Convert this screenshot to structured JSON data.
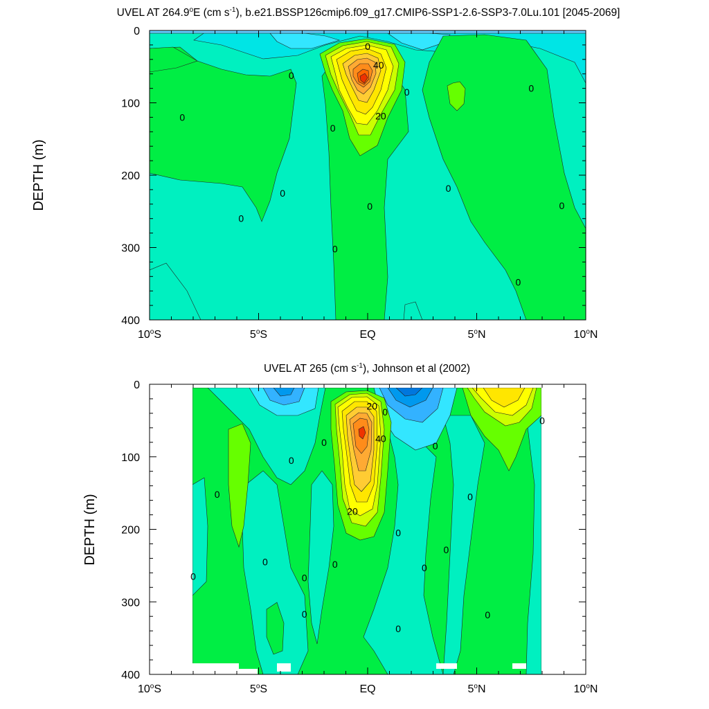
{
  "chart_data": [
    {
      "type": "heatmap",
      "title_main": "UVEL AT 264.9",
      "title_deg": "o",
      "title_e": "E (cm s",
      "title_exp": "-1",
      "title_rest": "), b.e21.BSSP126cmip6.f09_g17.CMIP6-SSP1-2.6-SSP3-7.0Lu.101 [2045-2069]",
      "ylabel": "DEPTH (m)",
      "xlim": [
        -10,
        10
      ],
      "ylim": [
        0,
        400
      ],
      "y_inverted": true,
      "x_ticks": [
        {
          "value": -10,
          "num": "10",
          "sup": "o",
          "hemi": "S"
        },
        {
          "value": -5,
          "num": "5",
          "sup": "o",
          "hemi": "S"
        },
        {
          "value": 0,
          "num": "EQ",
          "sup": "",
          "hemi": ""
        },
        {
          "value": 5,
          "num": "5",
          "sup": "o",
          "hemi": "N"
        },
        {
          "value": 10,
          "num": "10",
          "sup": "o",
          "hemi": "N"
        }
      ],
      "y_ticks": [
        0,
        100,
        200,
        300,
        400
      ],
      "contour_labels": [
        {
          "lat": 0.0,
          "depth": 22,
          "text": "0"
        },
        {
          "lat": 0.5,
          "depth": 48,
          "text": "40"
        },
        {
          "lat": -3.5,
          "depth": 62,
          "text": "0"
        },
        {
          "lat": 1.8,
          "depth": 85,
          "text": "0"
        },
        {
          "lat": 7.5,
          "depth": 80,
          "text": "0"
        },
        {
          "lat": 0.6,
          "depth": 118,
          "text": "20"
        },
        {
          "lat": -8.5,
          "depth": 120,
          "text": "0"
        },
        {
          "lat": -1.6,
          "depth": 135,
          "text": "0"
        },
        {
          "lat": -3.9,
          "depth": 225,
          "text": "0"
        },
        {
          "lat": 3.7,
          "depth": 218,
          "text": "0"
        },
        {
          "lat": 0.1,
          "depth": 243,
          "text": "0"
        },
        {
          "lat": 8.9,
          "depth": 242,
          "text": "0"
        },
        {
          "lat": -5.8,
          "depth": 260,
          "text": "0"
        },
        {
          "lat": -1.5,
          "depth": 302,
          "text": "0"
        },
        {
          "lat": 6.9,
          "depth": 348,
          "text": "0"
        }
      ]
    },
    {
      "type": "heatmap",
      "title_main": "UVEL AT 265 (cm s",
      "title_exp": "-1",
      "title_rest": "), Johnson et al (2002)",
      "ylabel": "DEPTH (m)",
      "xlim": [
        -10,
        10
      ],
      "ylim": [
        0,
        400
      ],
      "y_inverted": true,
      "x_ticks": [
        {
          "value": -10,
          "num": "10",
          "sup": "o",
          "hemi": "S"
        },
        {
          "value": -5,
          "num": "5",
          "sup": "o",
          "hemi": "S"
        },
        {
          "value": 0,
          "num": "EQ",
          "sup": "",
          "hemi": ""
        },
        {
          "value": 5,
          "num": "5",
          "sup": "o",
          "hemi": "N"
        },
        {
          "value": 10,
          "num": "10",
          "sup": "o",
          "hemi": "N"
        }
      ],
      "y_ticks": [
        0,
        100,
        200,
        300,
        400
      ],
      "contour_labels": [
        {
          "lat": 0.2,
          "depth": 30,
          "text": "20"
        },
        {
          "lat": 0.8,
          "depth": 38,
          "text": "0"
        },
        {
          "lat": 8.0,
          "depth": 50,
          "text": "0"
        },
        {
          "lat": 0.6,
          "depth": 75,
          "text": "40"
        },
        {
          "lat": -2.0,
          "depth": 80,
          "text": "0"
        },
        {
          "lat": 3.1,
          "depth": 85,
          "text": "0"
        },
        {
          "lat": -3.5,
          "depth": 105,
          "text": "0"
        },
        {
          "lat": -6.9,
          "depth": 152,
          "text": "0"
        },
        {
          "lat": 4.7,
          "depth": 155,
          "text": "0"
        },
        {
          "lat": -0.7,
          "depth": 175,
          "text": "20"
        },
        {
          "lat": 1.4,
          "depth": 205,
          "text": "0"
        },
        {
          "lat": 3.6,
          "depth": 228,
          "text": "0"
        },
        {
          "lat": -4.7,
          "depth": 245,
          "text": "0"
        },
        {
          "lat": -1.5,
          "depth": 248,
          "text": "0"
        },
        {
          "lat": 2.6,
          "depth": 253,
          "text": "0"
        },
        {
          "lat": -8.0,
          "depth": 265,
          "text": "0"
        },
        {
          "lat": -2.9,
          "depth": 267,
          "text": "0"
        },
        {
          "lat": -2.9,
          "depth": 317,
          "text": "0"
        },
        {
          "lat": 5.5,
          "depth": 318,
          "text": "0"
        },
        {
          "lat": 1.4,
          "depth": 337,
          "text": "0"
        }
      ]
    }
  ]
}
